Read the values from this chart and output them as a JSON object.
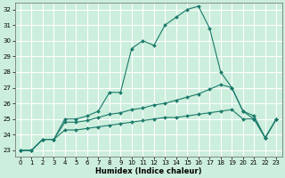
{
  "xlabel": "Humidex (Indice chaleur)",
  "bg_color": "#cceedd",
  "grid_color": "#ffffff",
  "line_color": "#1a7a6a",
  "xlim": [
    -0.5,
    23.5
  ],
  "ylim": [
    22.6,
    32.4
  ],
  "yticks": [
    23,
    24,
    25,
    26,
    27,
    28,
    29,
    30,
    31,
    32
  ],
  "xticks": [
    0,
    1,
    2,
    3,
    4,
    5,
    6,
    7,
    8,
    9,
    10,
    11,
    12,
    13,
    14,
    15,
    16,
    17,
    18,
    19,
    20,
    21,
    22,
    23
  ],
  "lines": [
    {
      "x": [
        0,
        1,
        2,
        3,
        4,
        5,
        6,
        7,
        8,
        9,
        10,
        11,
        12,
        13,
        14,
        15,
        16,
        17,
        18,
        19,
        20,
        21,
        22,
        23
      ],
      "y": [
        23,
        23,
        23.7,
        23.7,
        25.0,
        25.0,
        25.2,
        25.5,
        26.7,
        26.7,
        29.5,
        30.0,
        29.7,
        31.0,
        31.5,
        32.0,
        32.2,
        30.8,
        28.0,
        27.0,
        25.5,
        25.0,
        23.8,
        25.0
      ]
    },
    {
      "x": [
        0,
        1,
        2,
        3,
        4,
        5,
        6,
        7,
        8,
        9,
        10,
        11,
        12,
        13,
        14,
        15,
        16,
        17,
        18,
        19,
        20,
        21,
        22,
        23
      ],
      "y": [
        23,
        23,
        23.7,
        23.7,
        24.8,
        24.8,
        24.9,
        25.1,
        25.3,
        25.4,
        25.6,
        25.7,
        25.9,
        26.0,
        26.2,
        26.4,
        26.6,
        26.9,
        27.2,
        27.0,
        25.5,
        25.2,
        23.8,
        25.0
      ]
    },
    {
      "x": [
        0,
        1,
        2,
        3,
        4,
        5,
        6,
        7,
        8,
        9,
        10,
        11,
        12,
        13,
        14,
        15,
        16,
        17,
        18,
        19,
        20,
        21,
        22,
        23
      ],
      "y": [
        23,
        23,
        23.7,
        23.7,
        24.3,
        24.3,
        24.4,
        24.5,
        24.6,
        24.7,
        24.8,
        24.9,
        25.0,
        25.1,
        25.1,
        25.2,
        25.3,
        25.4,
        25.5,
        25.6,
        25.0,
        25.0,
        23.8,
        25.0
      ]
    }
  ]
}
